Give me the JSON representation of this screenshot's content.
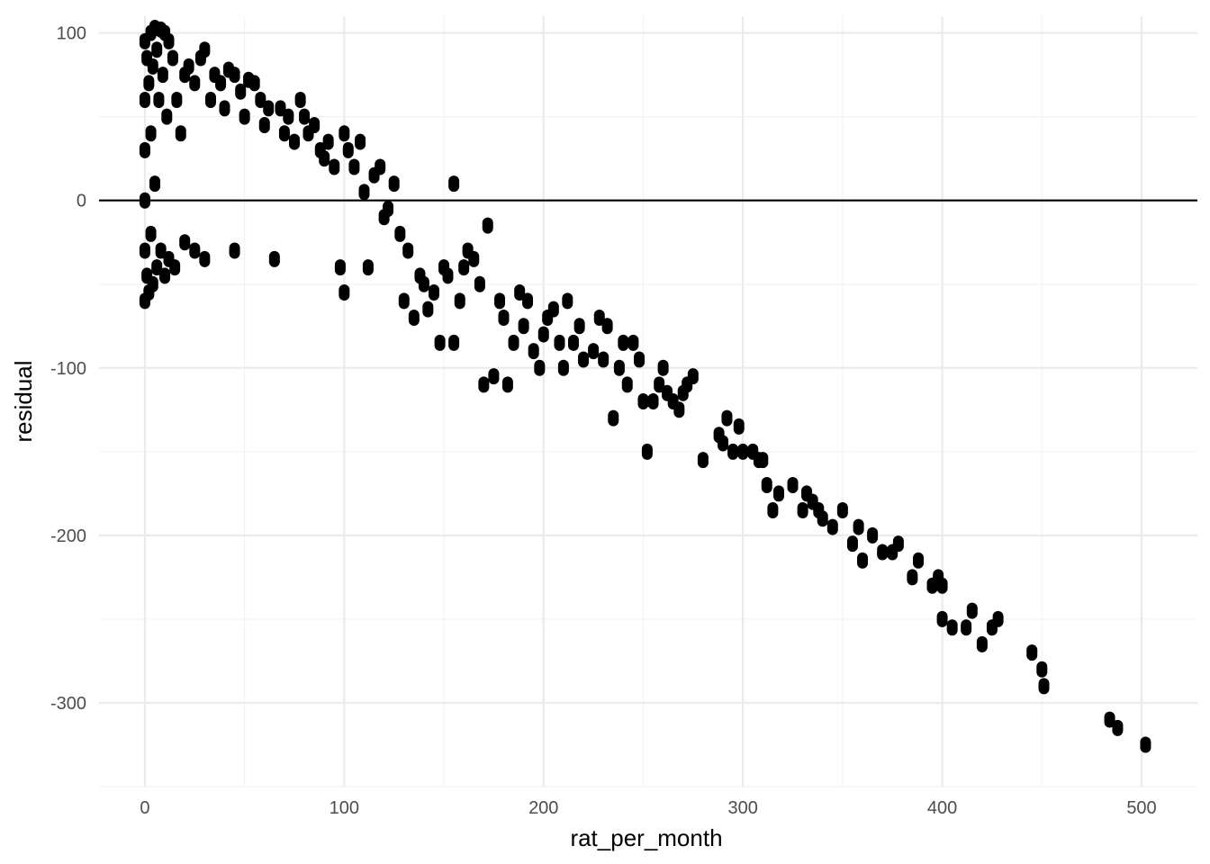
{
  "chart_data": {
    "type": "scatter",
    "title": "",
    "xlabel": "rat_per_month",
    "ylabel": "residual",
    "xlim": [
      -23,
      528
    ],
    "ylim": [
      -350,
      110
    ],
    "x_ticks": [
      0,
      100,
      200,
      300,
      400,
      500
    ],
    "y_ticks": [
      100,
      0,
      -100,
      -200,
      -300
    ],
    "x_tick_labels": [
      "0",
      "100",
      "200",
      "300",
      "400",
      "500"
    ],
    "y_tick_labels": [
      "100",
      "0",
      "-100",
      "-200",
      "-300"
    ],
    "reference_line_y": 0,
    "grid": true,
    "legend": "none",
    "colors": {
      "points": "#000000",
      "grid_major": "#ebebeb",
      "grid_minor": "#f3f3f3",
      "reference_line": "#000000",
      "tick_text": "#4d4d4d"
    },
    "series": [
      {
        "points": [
          [
            0,
            95
          ],
          [
            0,
            60
          ],
          [
            0,
            30
          ],
          [
            0,
            0
          ],
          [
            0,
            -30
          ],
          [
            0,
            -60
          ],
          [
            1,
            85
          ],
          [
            1,
            -45
          ],
          [
            2,
            70
          ],
          [
            2,
            -55
          ],
          [
            3,
            100
          ],
          [
            3,
            40
          ],
          [
            3,
            -20
          ],
          [
            4,
            80
          ],
          [
            4,
            -50
          ],
          [
            5,
            103
          ],
          [
            5,
            10
          ],
          [
            6,
            90
          ],
          [
            6,
            -40
          ],
          [
            7,
            60
          ],
          [
            8,
            102
          ],
          [
            8,
            -30
          ],
          [
            9,
            75
          ],
          [
            10,
            100
          ],
          [
            10,
            -45
          ],
          [
            11,
            50
          ],
          [
            12,
            95
          ],
          [
            12,
            -35
          ],
          [
            14,
            85
          ],
          [
            15,
            -40
          ],
          [
            16,
            60
          ],
          [
            18,
            40
          ],
          [
            20,
            75
          ],
          [
            20,
            -25
          ],
          [
            22,
            80
          ],
          [
            25,
            70
          ],
          [
            25,
            -30
          ],
          [
            28,
            85
          ],
          [
            30,
            90
          ],
          [
            30,
            -35
          ],
          [
            33,
            60
          ],
          [
            35,
            75
          ],
          [
            38,
            70
          ],
          [
            40,
            55
          ],
          [
            42,
            78
          ],
          [
            45,
            75
          ],
          [
            45,
            -30
          ],
          [
            48,
            65
          ],
          [
            50,
            50
          ],
          [
            52,
            72
          ],
          [
            55,
            70
          ],
          [
            58,
            60
          ],
          [
            60,
            45
          ],
          [
            62,
            55
          ],
          [
            65,
            -35
          ],
          [
            68,
            55
          ],
          [
            70,
            40
          ],
          [
            72,
            50
          ],
          [
            75,
            35
          ],
          [
            78,
            60
          ],
          [
            80,
            50
          ],
          [
            82,
            40
          ],
          [
            85,
            45
          ],
          [
            88,
            30
          ],
          [
            90,
            25
          ],
          [
            92,
            35
          ],
          [
            95,
            20
          ],
          [
            98,
            -40
          ],
          [
            100,
            40
          ],
          [
            100,
            -55
          ],
          [
            102,
            30
          ],
          [
            105,
            20
          ],
          [
            108,
            35
          ],
          [
            110,
            5
          ],
          [
            112,
            -40
          ],
          [
            115,
            15
          ],
          [
            118,
            20
          ],
          [
            120,
            -10
          ],
          [
            122,
            -5
          ],
          [
            125,
            10
          ],
          [
            128,
            -20
          ],
          [
            130,
            -60
          ],
          [
            132,
            -30
          ],
          [
            135,
            -70
          ],
          [
            138,
            -45
          ],
          [
            140,
            -50
          ],
          [
            142,
            -65
          ],
          [
            145,
            -55
          ],
          [
            148,
            -85
          ],
          [
            150,
            -40
          ],
          [
            152,
            -45
          ],
          [
            155,
            10
          ],
          [
            155,
            -85
          ],
          [
            158,
            -60
          ],
          [
            160,
            -40
          ],
          [
            162,
            -30
          ],
          [
            165,
            -35
          ],
          [
            168,
            -50
          ],
          [
            170,
            -110
          ],
          [
            172,
            -15
          ],
          [
            175,
            -105
          ],
          [
            178,
            -60
          ],
          [
            180,
            -70
          ],
          [
            182,
            -110
          ],
          [
            185,
            -85
          ],
          [
            188,
            -55
          ],
          [
            190,
            -75
          ],
          [
            192,
            -60
          ],
          [
            195,
            -90
          ],
          [
            198,
            -100
          ],
          [
            200,
            -80
          ],
          [
            202,
            -70
          ],
          [
            205,
            -65
          ],
          [
            208,
            -85
          ],
          [
            210,
            -100
          ],
          [
            212,
            -60
          ],
          [
            215,
            -85
          ],
          [
            218,
            -75
          ],
          [
            220,
            -95
          ],
          [
            225,
            -90
          ],
          [
            228,
            -70
          ],
          [
            230,
            -95
          ],
          [
            232,
            -75
          ],
          [
            235,
            -130
          ],
          [
            238,
            -100
          ],
          [
            240,
            -85
          ],
          [
            242,
            -110
          ],
          [
            245,
            -85
          ],
          [
            248,
            -95
          ],
          [
            250,
            -120
          ],
          [
            252,
            -150
          ],
          [
            255,
            -120
          ],
          [
            258,
            -110
          ],
          [
            260,
            -100
          ],
          [
            262,
            -115
          ],
          [
            265,
            -120
          ],
          [
            268,
            -125
          ],
          [
            270,
            -115
          ],
          [
            272,
            -110
          ],
          [
            275,
            -105
          ],
          [
            280,
            -155
          ],
          [
            288,
            -140
          ],
          [
            290,
            -145
          ],
          [
            292,
            -130
          ],
          [
            295,
            -150
          ],
          [
            298,
            -135
          ],
          [
            300,
            -150
          ],
          [
            305,
            -150
          ],
          [
            308,
            -155
          ],
          [
            310,
            -155
          ],
          [
            312,
            -170
          ],
          [
            315,
            -185
          ],
          [
            318,
            -175
          ],
          [
            325,
            -170
          ],
          [
            330,
            -185
          ],
          [
            332,
            -175
          ],
          [
            335,
            -180
          ],
          [
            338,
            -185
          ],
          [
            340,
            -190
          ],
          [
            345,
            -195
          ],
          [
            350,
            -185
          ],
          [
            355,
            -205
          ],
          [
            358,
            -195
          ],
          [
            360,
            -215
          ],
          [
            365,
            -200
          ],
          [
            370,
            -210
          ],
          [
            375,
            -210
          ],
          [
            378,
            -205
          ],
          [
            385,
            -225
          ],
          [
            388,
            -215
          ],
          [
            395,
            -230
          ],
          [
            398,
            -225
          ],
          [
            400,
            -250
          ],
          [
            400,
            -230
          ],
          [
            405,
            -255
          ],
          [
            412,
            -255
          ],
          [
            415,
            -245
          ],
          [
            420,
            -265
          ],
          [
            425,
            -255
          ],
          [
            428,
            -250
          ],
          [
            445,
            -270
          ],
          [
            450,
            -280
          ],
          [
            451,
            -290
          ],
          [
            484,
            -310
          ],
          [
            488,
            -315
          ],
          [
            502,
            -325
          ]
        ]
      }
    ]
  }
}
